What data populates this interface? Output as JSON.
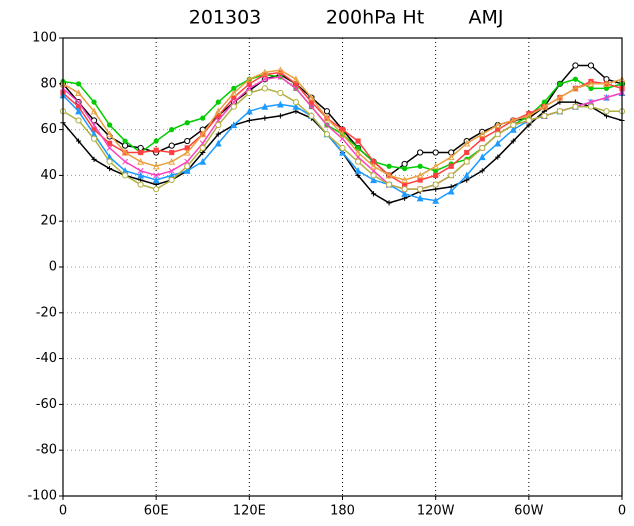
{
  "chart_data": {
    "type": "line",
    "title_parts": [
      "201303",
      "200hPa Ht",
      "AMJ"
    ],
    "x": [
      0,
      10,
      20,
      30,
      40,
      50,
      60,
      70,
      80,
      90,
      100,
      110,
      120,
      130,
      140,
      150,
      160,
      170,
      180,
      190,
      200,
      210,
      220,
      230,
      240,
      250,
      260,
      270,
      280,
      290,
      300,
      310,
      320,
      330,
      340,
      350,
      360
    ],
    "xlim": [
      0,
      360
    ],
    "xticks": [
      0,
      {
        "value": 60,
        "label": "60E"
      },
      {
        "value": 120,
        "label": "120E"
      },
      180,
      {
        "value": 240,
        "label": "120W"
      },
      {
        "value": 300,
        "label": "60W"
      },
      {
        "value": 360,
        "label": "0"
      }
    ],
    "ylim": [
      -100,
      100
    ],
    "yticks": [
      -100,
      -80,
      -60,
      -40,
      -20,
      0,
      20,
      40,
      60,
      80,
      100
    ],
    "grid": true,
    "series": [
      {
        "color": "#000000",
        "marker": "open-circle",
        "values": [
          80,
          72,
          64,
          57,
          53,
          52,
          50,
          53,
          55,
          60,
          66,
          72,
          77,
          82,
          84,
          80,
          74,
          68,
          60,
          52,
          46,
          40,
          45,
          50,
          50,
          50,
          55,
          59,
          62,
          64,
          65,
          70,
          80,
          88,
          88,
          82,
          80
        ]
      },
      {
        "color": "#000000",
        "marker": "plus",
        "values": [
          63,
          55,
          47,
          43,
          40,
          38,
          36,
          38,
          42,
          50,
          58,
          62,
          64,
          65,
          66,
          68,
          65,
          58,
          50,
          40,
          32,
          28,
          30,
          33,
          34,
          35,
          38,
          42,
          48,
          55,
          62,
          68,
          72,
          72,
          70,
          66,
          64
        ]
      },
      {
        "color": "#00cc00",
        "marker": "dot",
        "values": [
          81,
          80,
          72,
          62,
          55,
          50,
          55,
          60,
          63,
          65,
          72,
          78,
          82,
          84,
          83,
          78,
          70,
          62,
          58,
          52,
          46,
          44,
          43,
          44,
          42,
          45,
          47,
          52,
          58,
          62,
          66,
          72,
          80,
          82,
          78,
          78,
          80
        ]
      },
      {
        "color": "#ff4040",
        "marker": "square",
        "values": [
          76,
          70,
          60,
          54,
          50,
          50,
          51,
          50,
          52,
          58,
          66,
          74,
          80,
          84,
          85,
          80,
          72,
          65,
          60,
          55,
          46,
          40,
          36,
          38,
          40,
          44,
          50,
          56,
          60,
          64,
          67,
          70,
          74,
          78,
          81,
          80,
          78
        ]
      },
      {
        "color": "#1e9bff",
        "marker": "triangle",
        "values": [
          75,
          68,
          58,
          48,
          42,
          40,
          38,
          40,
          42,
          46,
          54,
          62,
          68,
          70,
          71,
          70,
          66,
          58,
          50,
          42,
          38,
          36,
          32,
          30,
          29,
          33,
          40,
          48,
          54,
          60,
          64,
          66,
          68,
          70,
          72,
          74,
          76
        ]
      },
      {
        "color": "#ff40c0",
        "marker": "cross",
        "values": [
          78,
          72,
          62,
          52,
          46,
          42,
          40,
          42,
          46,
          54,
          64,
          72,
          78,
          82,
          83,
          78,
          70,
          62,
          56,
          48,
          42,
          36,
          34,
          34,
          36,
          40,
          46,
          52,
          58,
          62,
          64,
          66,
          68,
          70,
          72,
          74,
          76
        ]
      },
      {
        "color": "#e8a040",
        "marker": "open-triangle",
        "values": [
          80,
          76,
          68,
          58,
          50,
          46,
          44,
          46,
          50,
          58,
          68,
          76,
          82,
          85,
          86,
          82,
          74,
          65,
          58,
          50,
          44,
          40,
          38,
          40,
          44,
          48,
          54,
          58,
          62,
          64,
          66,
          70,
          74,
          78,
          80,
          80,
          82
        ]
      },
      {
        "color": "#b0b040",
        "marker": "open-circle",
        "values": [
          68,
          64,
          56,
          46,
          40,
          36,
          34,
          38,
          44,
          52,
          62,
          70,
          76,
          78,
          76,
          72,
          66,
          58,
          52,
          46,
          40,
          36,
          34,
          34,
          36,
          40,
          46,
          52,
          58,
          62,
          64,
          66,
          68,
          70,
          70,
          68,
          68
        ]
      }
    ]
  }
}
